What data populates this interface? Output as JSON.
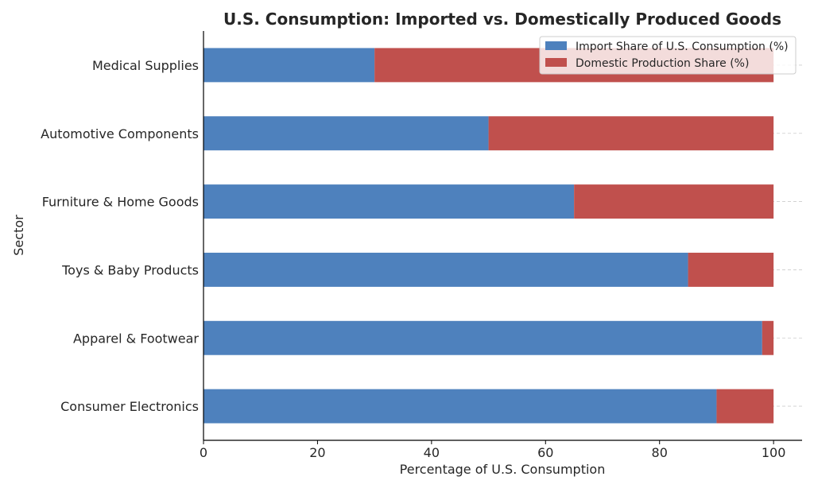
{
  "chart_data": {
    "type": "bar",
    "orientation": "horizontal",
    "stacked": true,
    "title": "U.S. Consumption: Imported vs. Domestically Produced Goods",
    "xlabel": "Percentage of U.S. Consumption",
    "ylabel": "Sector",
    "xlim": [
      0,
      105
    ],
    "xticks": [
      "0",
      "20",
      "40",
      "60",
      "80",
      "100"
    ],
    "grid": "horizontal dashed",
    "legend_position": "top-right",
    "categories": [
      "Consumer Electronics",
      "Apparel & Footwear",
      "Toys & Baby Products",
      "Furniture & Home Goods",
      "Automotive Components",
      "Medical Supplies"
    ],
    "series": [
      {
        "name": "Import Share of U.S. Consumption (%)",
        "color": "#4e81bd",
        "values": [
          90,
          98,
          85,
          65,
          50,
          30
        ]
      },
      {
        "name": "Domestic Production Share (%)",
        "color": "#c0504d",
        "values": [
          10,
          2,
          15,
          35,
          50,
          70
        ]
      }
    ]
  }
}
